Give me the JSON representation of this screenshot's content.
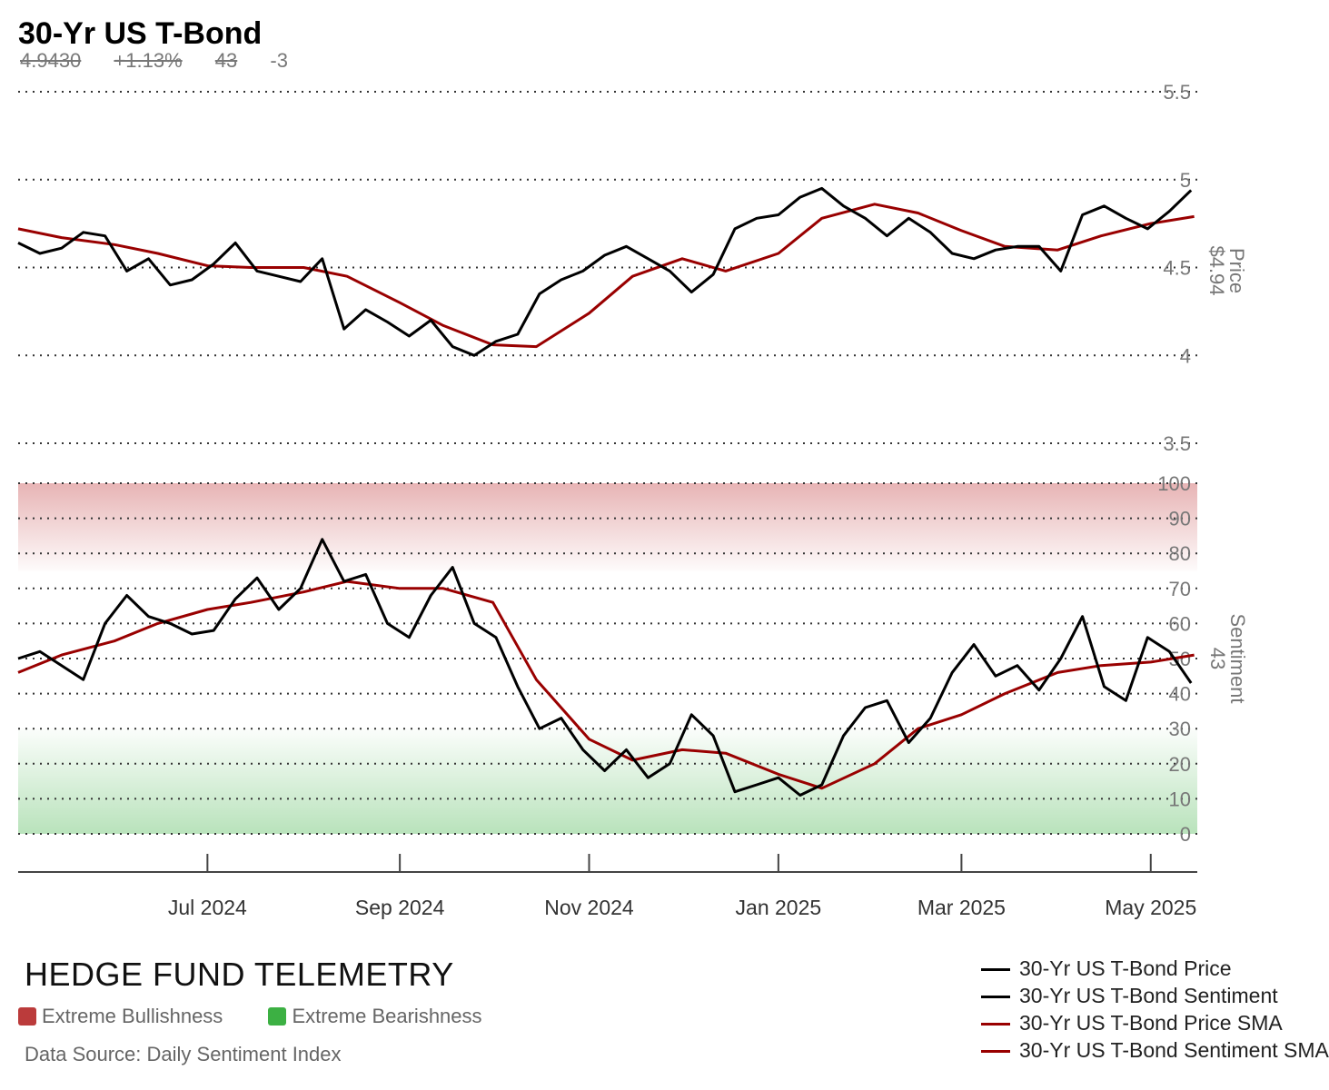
{
  "header": {
    "title": "30-Yr US T-Bond",
    "price": "4.9430",
    "change": "+1.13%",
    "sentiment": "43",
    "sentiment_change": "-3"
  },
  "colors": {
    "price_line": "#000000",
    "sma_line": "#990000",
    "bullish_zone": "#c0393b",
    "bearish_zone": "#3cb043",
    "grid": "#333333",
    "axis_text": "#777777"
  },
  "footer": {
    "brand": "HEDGE FUND TELEMETRY",
    "zone_legend": [
      {
        "label": "Extreme Bullishness",
        "color": "#bb3b3b"
      },
      {
        "label": "Extreme Bearishness",
        "color": "#3cb043"
      }
    ],
    "source": "Data Source: Daily Sentiment Index",
    "series_legend": [
      {
        "label": "30-Yr US T-Bond Price",
        "color": "#000000"
      },
      {
        "label": "30-Yr US T-Bond Sentiment",
        "color": "#000000"
      },
      {
        "label": "30-Yr US T-Bond Price SMA",
        "color": "#990000"
      },
      {
        "label": "30-Yr US T-Bond Sentiment SMA",
        "color": "#990000"
      }
    ]
  },
  "chart_data": [
    {
      "type": "line",
      "panel": "price",
      "ylabel": "Price",
      "last_value_label": "$4.94",
      "ylim": [
        3.5,
        5.5
      ],
      "yticks": [
        "3.5",
        "4",
        "4.5",
        "5",
        "5.5"
      ],
      "grid": true,
      "series": [
        {
          "name": "30-Yr US T-Bond Price",
          "points": [
            [
              "2024-05-01",
              4.64
            ],
            [
              "2024-05-08",
              4.58
            ],
            [
              "2024-05-15",
              4.61
            ],
            [
              "2024-05-22",
              4.7
            ],
            [
              "2024-05-29",
              4.68
            ],
            [
              "2024-06-05",
              4.48
            ],
            [
              "2024-06-12",
              4.55
            ],
            [
              "2024-06-19",
              4.4
            ],
            [
              "2024-06-26",
              4.43
            ],
            [
              "2024-07-03",
              4.52
            ],
            [
              "2024-07-10",
              4.64
            ],
            [
              "2024-07-17",
              4.48
            ],
            [
              "2024-07-24",
              4.45
            ],
            [
              "2024-07-31",
              4.42
            ],
            [
              "2024-08-07",
              4.55
            ],
            [
              "2024-08-14",
              4.15
            ],
            [
              "2024-08-21",
              4.26
            ],
            [
              "2024-08-28",
              4.19
            ],
            [
              "2024-09-04",
              4.11
            ],
            [
              "2024-09-11",
              4.2
            ],
            [
              "2024-09-18",
              4.05
            ],
            [
              "2024-09-25",
              4.0
            ],
            [
              "2024-10-02",
              4.08
            ],
            [
              "2024-10-09",
              4.12
            ],
            [
              "2024-10-16",
              4.35
            ],
            [
              "2024-10-23",
              4.43
            ],
            [
              "2024-10-30",
              4.48
            ],
            [
              "2024-11-06",
              4.57
            ],
            [
              "2024-11-13",
              4.62
            ],
            [
              "2024-11-20",
              4.55
            ],
            [
              "2024-11-27",
              4.48
            ],
            [
              "2024-12-04",
              4.36
            ],
            [
              "2024-12-11",
              4.46
            ],
            [
              "2024-12-18",
              4.72
            ],
            [
              "2024-12-25",
              4.78
            ],
            [
              "2025-01-01",
              4.8
            ],
            [
              "2025-01-08",
              4.9
            ],
            [
              "2025-01-15",
              4.95
            ],
            [
              "2025-01-22",
              4.85
            ],
            [
              "2025-01-29",
              4.78
            ],
            [
              "2025-02-05",
              4.68
            ],
            [
              "2025-02-12",
              4.78
            ],
            [
              "2025-02-19",
              4.7
            ],
            [
              "2025-02-26",
              4.58
            ],
            [
              "2025-03-05",
              4.55
            ],
            [
              "2025-03-12",
              4.6
            ],
            [
              "2025-03-19",
              4.62
            ],
            [
              "2025-03-26",
              4.62
            ],
            [
              "2025-04-02",
              4.48
            ],
            [
              "2025-04-09",
              4.8
            ],
            [
              "2025-04-16",
              4.85
            ],
            [
              "2025-04-23",
              4.78
            ],
            [
              "2025-04-30",
              4.72
            ],
            [
              "2025-05-07",
              4.82
            ],
            [
              "2025-05-14",
              4.94
            ]
          ]
        },
        {
          "name": "30-Yr US T-Bond Price SMA",
          "points": [
            [
              "2024-05-01",
              4.72
            ],
            [
              "2024-05-15",
              4.67
            ],
            [
              "2024-06-01",
              4.63
            ],
            [
              "2024-06-15",
              4.58
            ],
            [
              "2024-07-01",
              4.51
            ],
            [
              "2024-07-15",
              4.5
            ],
            [
              "2024-08-01",
              4.5
            ],
            [
              "2024-08-15",
              4.45
            ],
            [
              "2024-09-01",
              4.3
            ],
            [
              "2024-09-15",
              4.17
            ],
            [
              "2024-10-01",
              4.06
            ],
            [
              "2024-10-15",
              4.05
            ],
            [
              "2024-11-01",
              4.24
            ],
            [
              "2024-11-15",
              4.45
            ],
            [
              "2024-12-01",
              4.55
            ],
            [
              "2024-12-15",
              4.48
            ],
            [
              "2025-01-01",
              4.58
            ],
            [
              "2025-01-15",
              4.78
            ],
            [
              "2025-02-01",
              4.86
            ],
            [
              "2025-02-15",
              4.81
            ],
            [
              "2025-03-01",
              4.71
            ],
            [
              "2025-03-15",
              4.62
            ],
            [
              "2025-04-01",
              4.6
            ],
            [
              "2025-04-15",
              4.68
            ],
            [
              "2025-05-01",
              4.75
            ],
            [
              "2025-05-15",
              4.79
            ]
          ]
        }
      ]
    },
    {
      "type": "line",
      "panel": "sentiment",
      "ylabel": "Sentiment",
      "last_value_label": "43",
      "ylim": [
        0,
        100
      ],
      "yticks": [
        "0",
        "10",
        "20",
        "30",
        "40",
        "50",
        "60",
        "70",
        "80",
        "90",
        "100"
      ],
      "bands": [
        {
          "label": "Extreme Bullishness",
          "from": 75,
          "to": 100
        },
        {
          "label": "Extreme Bearishness",
          "from": 0,
          "to": 30
        }
      ],
      "x_ticks": [
        "Jul 2024",
        "Sep 2024",
        "Nov 2024",
        "Jan 2025",
        "Mar 2025",
        "May 2025"
      ],
      "series": [
        {
          "name": "30-Yr US T-Bond Sentiment",
          "points": [
            [
              "2024-05-01",
              50
            ],
            [
              "2024-05-08",
              52
            ],
            [
              "2024-05-15",
              48
            ],
            [
              "2024-05-22",
              44
            ],
            [
              "2024-05-29",
              60
            ],
            [
              "2024-06-05",
              68
            ],
            [
              "2024-06-12",
              62
            ],
            [
              "2024-06-19",
              60
            ],
            [
              "2024-06-26",
              57
            ],
            [
              "2024-07-03",
              58
            ],
            [
              "2024-07-10",
              67
            ],
            [
              "2024-07-17",
              73
            ],
            [
              "2024-07-24",
              64
            ],
            [
              "2024-07-31",
              70
            ],
            [
              "2024-08-07",
              84
            ],
            [
              "2024-08-14",
              72
            ],
            [
              "2024-08-21",
              74
            ],
            [
              "2024-08-28",
              60
            ],
            [
              "2024-09-04",
              56
            ],
            [
              "2024-09-11",
              68
            ],
            [
              "2024-09-18",
              76
            ],
            [
              "2024-09-25",
              60
            ],
            [
              "2024-10-02",
              56
            ],
            [
              "2024-10-09",
              42
            ],
            [
              "2024-10-16",
              30
            ],
            [
              "2024-10-23",
              33
            ],
            [
              "2024-10-30",
              24
            ],
            [
              "2024-11-06",
              18
            ],
            [
              "2024-11-13",
              24
            ],
            [
              "2024-11-20",
              16
            ],
            [
              "2024-11-27",
              20
            ],
            [
              "2024-12-04",
              34
            ],
            [
              "2024-12-11",
              28
            ],
            [
              "2024-12-18",
              12
            ],
            [
              "2024-12-25",
              14
            ],
            [
              "2025-01-01",
              16
            ],
            [
              "2025-01-08",
              11
            ],
            [
              "2025-01-15",
              14
            ],
            [
              "2025-01-22",
              28
            ],
            [
              "2025-01-29",
              36
            ],
            [
              "2025-02-05",
              38
            ],
            [
              "2025-02-12",
              26
            ],
            [
              "2025-02-19",
              33
            ],
            [
              "2025-02-26",
              46
            ],
            [
              "2025-03-05",
              54
            ],
            [
              "2025-03-12",
              45
            ],
            [
              "2025-03-19",
              48
            ],
            [
              "2025-03-26",
              41
            ],
            [
              "2025-04-02",
              50
            ],
            [
              "2025-04-09",
              62
            ],
            [
              "2025-04-16",
              42
            ],
            [
              "2025-04-23",
              38
            ],
            [
              "2025-04-30",
              56
            ],
            [
              "2025-05-07",
              52
            ],
            [
              "2025-05-14",
              43
            ]
          ]
        },
        {
          "name": "30-Yr US T-Bond Sentiment SMA",
          "points": [
            [
              "2024-05-01",
              46
            ],
            [
              "2024-05-15",
              51
            ],
            [
              "2024-06-01",
              55
            ],
            [
              "2024-06-15",
              60
            ],
            [
              "2024-07-01",
              64
            ],
            [
              "2024-07-15",
              66
            ],
            [
              "2024-08-01",
              69
            ],
            [
              "2024-08-15",
              72
            ],
            [
              "2024-09-01",
              70
            ],
            [
              "2024-09-15",
              70
            ],
            [
              "2024-10-01",
              66
            ],
            [
              "2024-10-15",
              44
            ],
            [
              "2024-11-01",
              27
            ],
            [
              "2024-11-15",
              21
            ],
            [
              "2024-12-01",
              24
            ],
            [
              "2024-12-15",
              23
            ],
            [
              "2025-01-01",
              17
            ],
            [
              "2025-01-15",
              13
            ],
            [
              "2025-02-01",
              20
            ],
            [
              "2025-02-15",
              30
            ],
            [
              "2025-03-01",
              34
            ],
            [
              "2025-03-15",
              40
            ],
            [
              "2025-04-01",
              46
            ],
            [
              "2025-04-15",
              48
            ],
            [
              "2025-05-01",
              49
            ],
            [
              "2025-05-15",
              51
            ]
          ]
        }
      ]
    }
  ]
}
